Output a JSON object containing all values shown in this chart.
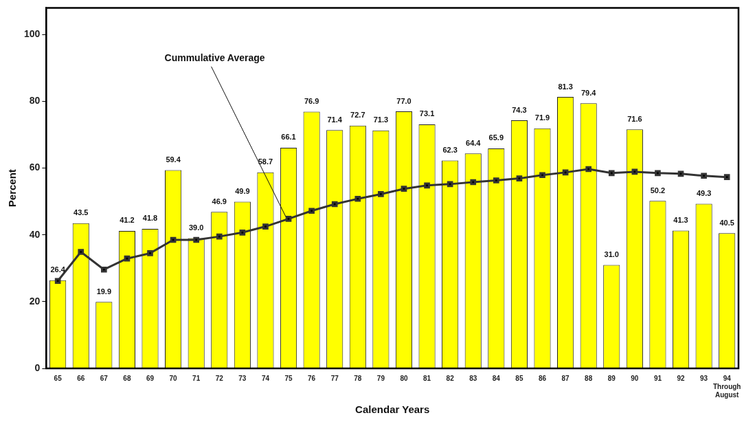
{
  "chart_data": {
    "type": "bar",
    "xlabel": "Calendar Years",
    "ylabel": "Percent",
    "categories": [
      "65",
      "66",
      "67",
      "68",
      "69",
      "70",
      "71",
      "72",
      "73",
      "74",
      "75",
      "76",
      "77",
      "78",
      "79",
      "80",
      "81",
      "82",
      "83",
      "84",
      "85",
      "86",
      "87",
      "88",
      "89",
      "90",
      "91",
      "92",
      "93",
      "94 Through August"
    ],
    "series": [
      {
        "color": "#ffff00",
        "values": [
          26.4,
          43.5,
          19.9,
          41.2,
          41.8,
          59.4,
          39.0,
          46.9,
          49.9,
          58.7,
          66.1,
          76.9,
          71.4,
          72.7,
          71.3,
          77.0,
          73.1,
          62.3,
          64.4,
          65.9,
          74.3,
          71.9,
          81.3,
          79.4,
          31.0,
          71.6,
          50.2,
          41.3,
          49.3,
          40.5
        ],
        "value_labels": [
          "26.4",
          "43.5",
          "19.9",
          "41.2",
          "41.8",
          "59.4",
          "39.0",
          "46.9",
          "49.9",
          "58.7",
          "66.1",
          "76.9",
          "71.4",
          "72.7",
          "71.3",
          "77.0",
          "73.1",
          "62.3",
          "64.4",
          "65.9",
          "74.3",
          "71.9",
          "81.3",
          "79.4",
          "31.0",
          "71.6",
          "50.2",
          "41.3",
          "49.3",
          "40.5"
        ]
      },
      {
        "type": "line",
        "name": "Cummulative Average",
        "color": "#333333",
        "values": [
          26.2,
          34.9,
          29.6,
          32.9,
          34.5,
          38.5,
          38.5,
          39.5,
          40.7,
          42.5,
          44.8,
          47.2,
          49.2,
          50.8,
          52.2,
          53.8,
          54.8,
          55.2,
          55.8,
          56.3,
          56.9,
          57.9,
          58.7,
          59.7,
          58.5,
          58.9,
          58.5,
          58.3,
          57.7,
          57.3
        ]
      }
    ],
    "ylim": [
      0,
      108
    ],
    "yticks": [
      0,
      20,
      40,
      60,
      80,
      100
    ],
    "grid": false,
    "legend": false,
    "marker": "square",
    "line_style": "solid"
  }
}
